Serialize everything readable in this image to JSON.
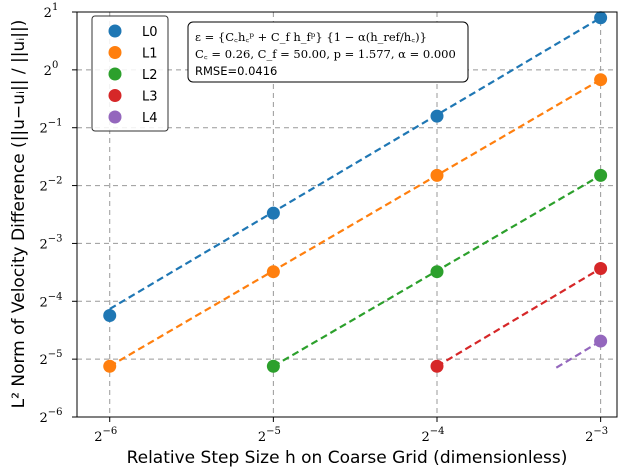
{
  "chart_data": {
    "type": "line",
    "xlabel": "Relative Step Size h on Coarse Grid (dimensionless)",
    "ylabel": "L² Norm of Velocity Difference (||u−uᵢ|| / ||uᵢ||)",
    "x_scale": "log2",
    "y_scale": "log2",
    "xlim_log2": [
      -6.2,
      -2.9
    ],
    "ylim_log2": [
      -6,
      1
    ],
    "x_ticks": [
      {
        "base": "2",
        "exp": "−6",
        "log2": -6
      },
      {
        "base": "2",
        "exp": "−5",
        "log2": -5
      },
      {
        "base": "2",
        "exp": "−4",
        "log2": -4
      },
      {
        "base": "2",
        "exp": "−3",
        "log2": -3
      }
    ],
    "y_ticks": [
      {
        "base": "2",
        "exp": "1",
        "log2": 1
      },
      {
        "base": "2",
        "exp": "0",
        "log2": 0
      },
      {
        "base": "2",
        "exp": "−1",
        "log2": -1
      },
      {
        "base": "2",
        "exp": "−2",
        "log2": -2
      },
      {
        "base": "2",
        "exp": "−3",
        "log2": -3
      },
      {
        "base": "2",
        "exp": "−4",
        "log2": -4
      },
      {
        "base": "2",
        "exp": "−5",
        "log2": -5
      },
      {
        "base": "2",
        "exp": "−6",
        "log2": -6
      }
    ],
    "grid": true,
    "legend_position": "top-left",
    "series": [
      {
        "name": "L0",
        "color": "#1f77b4",
        "points": [
          [
            0.015625,
            0.0527
          ],
          [
            0.03125,
            0.1797
          ],
          [
            0.0625,
            0.5743
          ],
          [
            0.125,
            1.8661
          ]
        ],
        "fit": [
          [
            0.015625,
            0.057
          ],
          [
            0.125,
            1.8661
          ]
        ]
      },
      {
        "name": "L1",
        "color": "#ff7f0e",
        "points": [
          [
            0.015625,
            0.0287
          ],
          [
            0.03125,
            0.0891
          ],
          [
            0.0625,
            0.2824
          ],
          [
            0.125,
            0.8888
          ]
        ],
        "fit": [
          [
            0.015625,
            0.0287
          ],
          [
            0.125,
            0.8888
          ]
        ]
      },
      {
        "name": "L2",
        "color": "#2ca02c",
        "points": [
          [
            0.03125,
            0.0287
          ],
          [
            0.0625,
            0.0891
          ],
          [
            0.125,
            0.2824
          ]
        ],
        "fit": [
          [
            0.03125,
            0.0287
          ],
          [
            0.125,
            0.2824
          ]
        ]
      },
      {
        "name": "L3",
        "color": "#d62728",
        "points": [
          [
            0.0625,
            0.0287
          ],
          [
            0.125,
            0.0926
          ]
        ],
        "fit": [
          [
            0.0625,
            0.0287
          ],
          [
            0.125,
            0.0926
          ]
        ]
      },
      {
        "name": "L4",
        "color": "#9467bd",
        "points": [
          [
            0.125,
            0.0388
          ]
        ],
        "fit": [
          [
            0.1036,
            0.0282
          ],
          [
            0.125,
            0.0388
          ]
        ]
      }
    ],
    "annotation": {
      "line1": "ε = {C꜀h꜀ᵖ + C_f h_fᵖ} {1 − α(h_ref/h꜀)}",
      "line2": "C꜀ = 0.26, C_f = 50.00, p = 1.577, α = 0.000",
      "line3": "RMSE=0.0416"
    }
  }
}
